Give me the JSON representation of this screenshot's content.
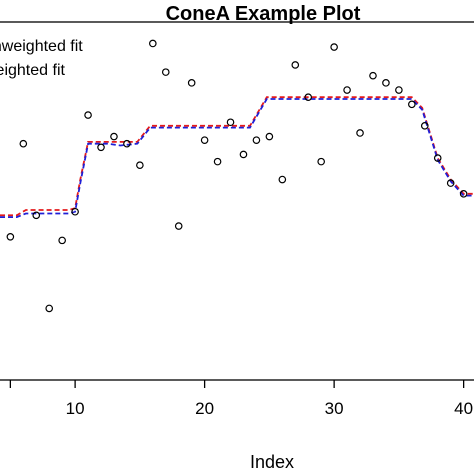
{
  "chart_data": {
    "type": "scatter",
    "title": "ConeA Example Plot",
    "xlabel": "Index",
    "ylabel": "",
    "x_ticks": [
      "10",
      "20",
      "30",
      "40"
    ],
    "xlim": [
      4.2,
      40.8
    ],
    "ylim": [
      0,
      1
    ],
    "grid": false,
    "legend": {
      "placement": "top-left",
      "entries": [
        {
          "label": "unweighted fit",
          "color": "#e41a1c",
          "linestyle": "dashed"
        },
        {
          "label": "weighted fit",
          "color": "#1f1fd6",
          "linestyle": "dashed"
        }
      ]
    },
    "points": {
      "x": [
        5,
        6,
        7,
        8,
        9,
        10,
        11,
        12,
        13,
        14,
        15,
        16,
        17,
        18,
        19,
        20,
        21,
        22,
        23,
        24,
        25,
        26,
        27,
        28,
        29,
        30,
        31,
        32,
        33,
        34,
        35,
        36,
        37,
        38,
        39,
        40
      ],
      "y": [
        0.4,
        0.66,
        0.46,
        0.2,
        0.39,
        0.47,
        0.74,
        0.65,
        0.68,
        0.66,
        0.6,
        0.94,
        0.86,
        0.43,
        0.83,
        0.67,
        0.61,
        0.72,
        0.63,
        0.67,
        0.68,
        0.56,
        0.88,
        0.79,
        0.61,
        0.93,
        0.81,
        0.69,
        0.85,
        0.83,
        0.81,
        0.77,
        0.71,
        0.62,
        0.55,
        0.52
      ]
    },
    "series": [
      {
        "name": "unweighted fit",
        "color": "#e41a1c",
        "x": [
          4.2,
          5.5,
          6.2,
          9.5,
          10.0,
          10.4,
          11.0,
          12.5,
          13.5,
          14.8,
          15.8,
          23.5,
          24.8,
          36.0,
          36.8,
          38.0,
          39.0,
          40.0,
          40.8
        ],
        "y": [
          0.46,
          0.46,
          0.475,
          0.475,
          0.48,
          0.56,
          0.665,
          0.665,
          0.665,
          0.665,
          0.71,
          0.71,
          0.79,
          0.79,
          0.76,
          0.62,
          0.56,
          0.52,
          0.52
        ]
      },
      {
        "name": "weighted fit",
        "color": "#1f1fd6",
        "x": [
          4.2,
          5.5,
          6.2,
          9.5,
          10.0,
          10.4,
          11.0,
          12.5,
          13.5,
          14.8,
          15.8,
          23.5,
          24.8,
          36.0,
          36.8,
          38.0,
          39.0,
          40.0,
          40.8
        ],
        "y": [
          0.455,
          0.455,
          0.465,
          0.465,
          0.47,
          0.55,
          0.66,
          0.66,
          0.655,
          0.66,
          0.705,
          0.705,
          0.785,
          0.785,
          0.755,
          0.615,
          0.555,
          0.515,
          0.515
        ]
      }
    ]
  }
}
